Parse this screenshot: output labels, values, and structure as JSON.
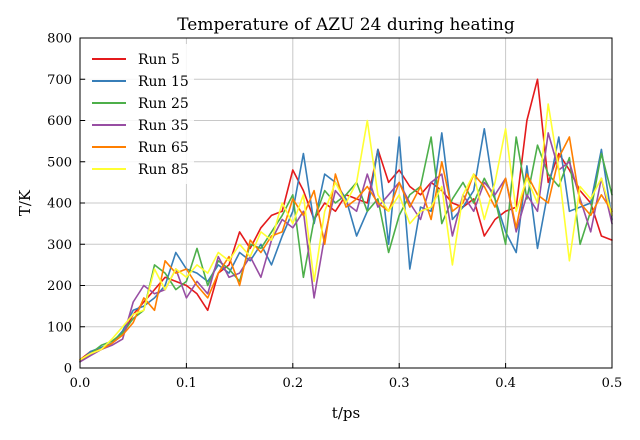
{
  "chart_data": {
    "type": "line",
    "title": "Temperature of AZU 24 during heating",
    "xlabel": "t/ps",
    "ylabel": "T/K",
    "xlim": [
      0,
      0.5
    ],
    "ylim": [
      0,
      800
    ],
    "x_ticks": [
      0.0,
      0.1,
      0.2,
      0.3,
      0.4,
      0.5
    ],
    "x_tick_labels": [
      "0.0",
      "0.1",
      "0.2",
      "0.3",
      "0.4",
      "0.5"
    ],
    "y_ticks": [
      0,
      100,
      200,
      300,
      400,
      500,
      600,
      700,
      800
    ],
    "y_tick_labels": [
      "0",
      "100",
      "200",
      "300",
      "400",
      "500",
      "600",
      "700",
      "800"
    ],
    "grid": true,
    "legend_position": "top-left",
    "x": [
      0.0,
      0.01,
      0.02,
      0.03,
      0.04,
      0.05,
      0.06,
      0.07,
      0.08,
      0.09,
      0.1,
      0.11,
      0.12,
      0.13,
      0.14,
      0.15,
      0.16,
      0.17,
      0.18,
      0.19,
      0.2,
      0.21,
      0.22,
      0.23,
      0.24,
      0.25,
      0.26,
      0.27,
      0.28,
      0.29,
      0.3,
      0.31,
      0.32,
      0.33,
      0.34,
      0.35,
      0.36,
      0.37,
      0.38,
      0.39,
      0.4,
      0.41,
      0.42,
      0.43,
      0.44,
      0.45,
      0.46,
      0.47,
      0.48,
      0.49,
      0.5
    ],
    "series": [
      {
        "name": "Run 5",
        "color": "#e41a1c",
        "values": [
          20,
          40,
          45,
          60,
          80,
          130,
          160,
          190,
          220,
          210,
          200,
          180,
          140,
          230,
          250,
          330,
          290,
          340,
          370,
          380,
          480,
          430,
          360,
          400,
          380,
          420,
          410,
          400,
          530,
          450,
          480,
          440,
          420,
          450,
          430,
          400,
          390,
          410,
          320,
          360,
          380,
          390,
          600,
          700,
          450,
          520,
          480,
          430,
          400,
          320,
          310
        ]
      },
      {
        "name": "Run 15",
        "color": "#377eb8",
        "values": [
          15,
          40,
          50,
          60,
          90,
          140,
          150,
          170,
          200,
          280,
          240,
          230,
          210,
          250,
          230,
          280,
          260,
          300,
          250,
          320,
          380,
          520,
          350,
          470,
          450,
          410,
          320,
          380,
          530,
          300,
          560,
          240,
          390,
          380,
          570,
          360,
          390,
          430,
          580,
          410,
          330,
          280,
          490,
          290,
          430,
          560,
          380,
          390,
          400,
          530,
          360
        ]
      },
      {
        "name": "Run 25",
        "color": "#4daf4a",
        "values": [
          15,
          35,
          55,
          65,
          85,
          120,
          140,
          250,
          230,
          190,
          210,
          290,
          200,
          260,
          240,
          210,
          300,
          290,
          330,
          370,
          420,
          220,
          360,
          430,
          400,
          420,
          450,
          380,
          410,
          280,
          370,
          420,
          440,
          560,
          350,
          410,
          450,
          400,
          460,
          410,
          300,
          560,
          410,
          540,
          470,
          440,
          510,
          300,
          380,
          520,
          420
        ]
      },
      {
        "name": "Run 35",
        "color": "#984ea3",
        "values": [
          15,
          30,
          45,
          55,
          70,
          160,
          200,
          180,
          190,
          240,
          170,
          210,
          180,
          270,
          220,
          230,
          270,
          220,
          310,
          360,
          340,
          380,
          170,
          320,
          430,
          400,
          380,
          470,
          390,
          420,
          450,
          400,
          360,
          450,
          470,
          320,
          420,
          380,
          450,
          420,
          460,
          330,
          420,
          380,
          570,
          480,
          500,
          410,
          330,
          460,
          350
        ]
      },
      {
        "name": "Run 65",
        "color": "#ff7f00",
        "values": [
          20,
          35,
          45,
          60,
          80,
          110,
          170,
          140,
          260,
          230,
          240,
          200,
          170,
          230,
          270,
          200,
          310,
          280,
          320,
          330,
          410,
          370,
          430,
          300,
          470,
          390,
          410,
          440,
          400,
          380,
          450,
          390,
          440,
          360,
          500,
          380,
          400,
          470,
          440,
          390,
          460,
          340,
          470,
          420,
          400,
          510,
          560,
          400,
          370,
          420,
          380
        ]
      },
      {
        "name": "Run 85",
        "color": "#ffff33",
        "values": [
          20,
          35,
          45,
          70,
          100,
          130,
          140,
          240,
          190,
          240,
          220,
          250,
          230,
          280,
          260,
          300,
          270,
          330,
          310,
          400,
          350,
          420,
          210,
          380,
          450,
          400,
          450,
          600,
          420,
          380,
          420,
          350,
          380,
          390,
          440,
          250,
          420,
          470,
          360,
          450,
          580,
          380,
          460,
          400,
          640,
          480,
          260,
          440,
          410,
          460,
          370
        ]
      }
    ]
  }
}
